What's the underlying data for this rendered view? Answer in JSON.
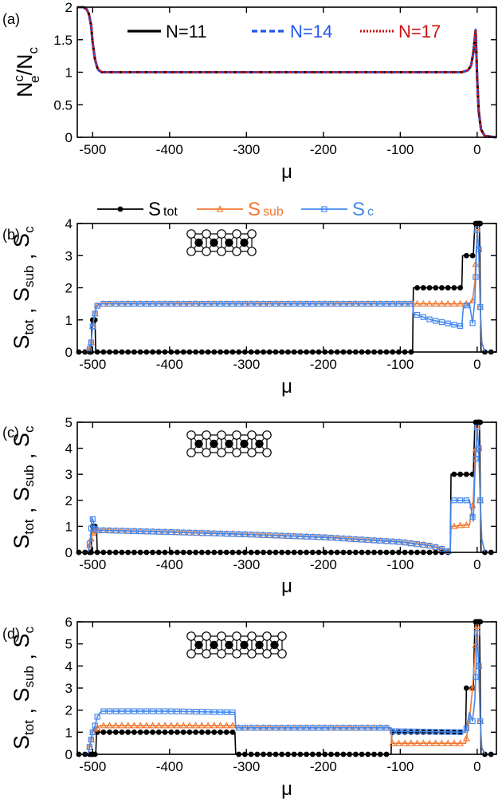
{
  "colors": {
    "black": "#000000",
    "blue": "#2255ee",
    "red": "#cc1111",
    "orange": "#f07830",
    "lightblue": "#4488ee"
  },
  "chart_data": [
    {
      "panel": "(a)",
      "type": "line",
      "ylabel": {
        "base": "N",
        "sup": "c",
        "sub": "e",
        "tail": "/N",
        "tail_sub": "c"
      },
      "xlabel": "μ",
      "xlim": [
        -520,
        25
      ],
      "ylim": [
        0,
        2
      ],
      "xticks": [
        -500,
        -400,
        -300,
        -200,
        -100,
        0
      ],
      "yticks": [
        0,
        0.5,
        1,
        1.5,
        2
      ],
      "ytick_labels": [
        "0",
        "0.5",
        "1",
        "1.5",
        "2"
      ],
      "legend": [
        "N=11",
        "N=14",
        "N=17"
      ],
      "series": [
        {
          "name": "N=11",
          "style": "solid",
          "color": "#000000",
          "x": [
            -520,
            -512,
            -508,
            -505,
            -502,
            -500,
            -497,
            -494,
            -492,
            -488,
            -450,
            -300,
            -100,
            -20,
            -12,
            -8,
            -5,
            -2,
            0,
            2,
            5,
            10,
            25
          ],
          "y": [
            2,
            2,
            1.97,
            1.9,
            1.72,
            1.45,
            1.2,
            1.07,
            1.03,
            1.0,
            1.0,
            1.0,
            1.0,
            1.0,
            1.03,
            1.1,
            1.3,
            1.65,
            0.9,
            0.4,
            0.12,
            0.02,
            0.0
          ]
        },
        {
          "name": "N=14",
          "style": "dashed",
          "color": "#2255ee",
          "x": [
            -520,
            -512,
            -508,
            -505,
            -502,
            -500,
            -497,
            -494,
            -492,
            -488,
            -450,
            -300,
            -100,
            -20,
            -12,
            -8,
            -5,
            -2,
            0,
            2,
            5,
            10,
            25
          ],
          "y": [
            2,
            2,
            1.97,
            1.9,
            1.72,
            1.45,
            1.2,
            1.07,
            1.03,
            1.0,
            1.0,
            1.0,
            1.0,
            1.0,
            1.03,
            1.1,
            1.3,
            1.65,
            0.9,
            0.4,
            0.12,
            0.02,
            0.0
          ]
        },
        {
          "name": "N=17",
          "style": "dotted",
          "color": "#cc1111",
          "x": [
            -520,
            -512,
            -508,
            -505,
            -502,
            -500,
            -497,
            -494,
            -492,
            -488,
            -450,
            -300,
            -100,
            -20,
            -12,
            -8,
            -5,
            -2,
            0,
            2,
            5,
            10,
            25
          ],
          "y": [
            2,
            2,
            1.97,
            1.9,
            1.72,
            1.45,
            1.2,
            1.07,
            1.03,
            1.0,
            1.0,
            1.0,
            1.0,
            1.0,
            1.03,
            1.1,
            1.3,
            1.65,
            0.9,
            0.4,
            0.12,
            0.02,
            0.0
          ]
        }
      ]
    },
    {
      "panel": "(b)",
      "type": "line",
      "xlabel": "μ",
      "xlim": [
        -520,
        25
      ],
      "ylim": [
        0,
        4
      ],
      "xticks": [
        -500,
        -400,
        -300,
        -200,
        -100,
        0
      ],
      "yticks": [
        0,
        1,
        2,
        3,
        4
      ],
      "ytick_labels": [
        "0",
        "1",
        "2",
        "3",
        "4"
      ],
      "ladder_rungs": 4,
      "series": [
        {
          "name": "S_tot",
          "color": "#000000",
          "marker": "circle",
          "step": true,
          "x": [
            -520,
            -502,
            -501,
            -497,
            -496,
            -84,
            -83,
            -20,
            -19,
            -5,
            -3,
            3,
            5,
            25
          ],
          "y": [
            0,
            0,
            1,
            1,
            0,
            0,
            2,
            2,
            3,
            3,
            4,
            4,
            0,
            0
          ]
        },
        {
          "name": "S_sub",
          "color": "#f07830",
          "marker": "triangle",
          "x": [
            -520,
            -505,
            -502,
            -500,
            -497,
            -495,
            -492,
            -488,
            -450,
            -300,
            -84,
            -83,
            -40,
            -20,
            -10,
            -6,
            -3,
            0,
            2,
            4,
            6,
            10,
            25
          ],
          "y": [
            0,
            0,
            0.3,
            0.8,
            1.2,
            1.42,
            1.48,
            1.5,
            1.5,
            1.5,
            1.5,
            1.5,
            1.5,
            1.5,
            1.5,
            1.6,
            2.2,
            3.8,
            3.2,
            1.4,
            0.3,
            0,
            0
          ]
        },
        {
          "name": "S_c",
          "color": "#4488ee",
          "marker": "square",
          "x": [
            -520,
            -505,
            -502,
            -500,
            -497,
            -495,
            -492,
            -488,
            -450,
            -300,
            -84,
            -83,
            -60,
            -40,
            -20,
            -18,
            -10,
            -6,
            -3,
            0,
            2,
            4,
            6,
            10,
            25
          ],
          "y": [
            0,
            0,
            0.3,
            0.8,
            1.2,
            1.42,
            1.48,
            1.5,
            1.5,
            1.5,
            1.5,
            1.2,
            1.0,
            0.9,
            0.8,
            1.4,
            1.5,
            0.9,
            1.6,
            3.8,
            3.2,
            1.4,
            0.3,
            0,
            0
          ]
        }
      ]
    },
    {
      "panel": "(c)",
      "type": "line",
      "xlabel": "μ",
      "xlim": [
        -520,
        25
      ],
      "ylim": [
        0,
        5
      ],
      "xticks": [
        -500,
        -400,
        -300,
        -200,
        -100,
        0
      ],
      "yticks": [
        0,
        1,
        2,
        3,
        4,
        5
      ],
      "ytick_labels": [
        "0",
        "1",
        "2",
        "3",
        "4",
        "5"
      ],
      "ladder_rungs": 5,
      "series": [
        {
          "name": "S_tot",
          "color": "#000000",
          "marker": "circle",
          "step": true,
          "x": [
            -520,
            -502,
            -501,
            -495,
            -494,
            -35,
            -34,
            -5,
            -3,
            3,
            5,
            25
          ],
          "y": [
            0,
            0,
            1,
            1,
            0,
            0,
            3,
            3,
            5,
            5,
            0,
            0
          ]
        },
        {
          "name": "S_sub",
          "color": "#f07830",
          "marker": "triangle",
          "x": [
            -520,
            -506,
            -503,
            -500,
            -497,
            -494,
            -490,
            -400,
            -300,
            -200,
            -100,
            -60,
            -42,
            -35,
            -34,
            -30,
            -20,
            -10,
            -5,
            -3,
            0,
            2,
            4,
            6,
            10,
            25
          ],
          "y": [
            0,
            0,
            0.4,
            0.75,
            0.82,
            0.85,
            0.85,
            0.78,
            0.69,
            0.58,
            0.4,
            0.25,
            0.1,
            0,
            1.0,
            1.0,
            1.05,
            1.05,
            2.0,
            3.5,
            4.8,
            4.0,
            2.0,
            0.5,
            0,
            0
          ]
        },
        {
          "name": "S_c",
          "color": "#4488ee",
          "marker": "square",
          "x": [
            -520,
            -506,
            -503,
            -501,
            -499,
            -497,
            -494,
            -490,
            -400,
            -300,
            -200,
            -100,
            -60,
            -42,
            -35,
            -34,
            -30,
            -20,
            -10,
            -5,
            -3,
            0,
            2,
            4,
            6,
            10,
            25
          ],
          "y": [
            0,
            0,
            0.5,
            1.35,
            1.2,
            0.9,
            0.85,
            0.85,
            0.78,
            0.69,
            0.58,
            0.4,
            0.25,
            0.1,
            0,
            2.0,
            2.0,
            2.0,
            2.0,
            1.2,
            3.0,
            4.8,
            4.0,
            2.0,
            0.5,
            0,
            0
          ]
        }
      ]
    },
    {
      "panel": "(d)",
      "type": "line",
      "xlabel": "μ",
      "xlim": [
        -520,
        25
      ],
      "ylim": [
        0,
        6
      ],
      "xticks": [
        -500,
        -400,
        -300,
        -200,
        -100,
        0
      ],
      "yticks": [
        0,
        1,
        2,
        3,
        4,
        5,
        6
      ],
      "ytick_labels": [
        "0",
        "1",
        "2",
        "3",
        "4",
        "5",
        "6"
      ],
      "ladder_rungs": 6,
      "series": [
        {
          "name": "S_tot",
          "color": "#000000",
          "marker": "circle",
          "step": true,
          "x": [
            -520,
            -496,
            -495,
            -488,
            -487,
            -315,
            -314,
            -112,
            -111,
            -15,
            -14,
            -5,
            -3,
            3,
            5,
            25
          ],
          "y": [
            0,
            0,
            1,
            1,
            1,
            1,
            0,
            0,
            1,
            1,
            3,
            3,
            6,
            6,
            0,
            0
          ]
        },
        {
          "name": "S_sub",
          "color": "#f07830",
          "marker": "triangle",
          "x": [
            -520,
            -506,
            -503,
            -500,
            -497,
            -494,
            -490,
            -488,
            -400,
            -315,
            -314,
            -200,
            -112,
            -111,
            -15,
            -10,
            -6,
            -3,
            0,
            2,
            4,
            6,
            10,
            25
          ],
          "y": [
            0,
            0,
            0.5,
            1.0,
            1.15,
            1.2,
            1.3,
            1.3,
            1.3,
            1.3,
            1.2,
            1.2,
            1.2,
            0.5,
            0.5,
            1.6,
            3.0,
            4.5,
            5.8,
            4.0,
            1.5,
            0.3,
            0,
            0
          ]
        },
        {
          "name": "S_c",
          "color": "#4488ee",
          "marker": "square",
          "x": [
            -520,
            -506,
            -503,
            -500,
            -497,
            -494,
            -490,
            -488,
            -400,
            -315,
            -314,
            -200,
            -112,
            -111,
            -15,
            -10,
            -6,
            -3,
            0,
            2,
            4,
            6,
            10,
            25
          ],
          "y": [
            0,
            0,
            0.5,
            1.0,
            1.3,
            1.7,
            1.9,
            1.95,
            1.95,
            1.9,
            1.2,
            1.2,
            1.2,
            1.05,
            1.0,
            1.9,
            1.5,
            2.5,
            5.5,
            4.0,
            1.5,
            0.3,
            0,
            0
          ]
        }
      ]
    }
  ],
  "shared_legend": {
    "entries": [
      {
        "base": "S",
        "sub": "tot",
        "color": "#000000",
        "marker": "circle"
      },
      {
        "base": "S",
        "sub": "sub",
        "color": "#f07830",
        "marker": "triangle"
      },
      {
        "base": "S",
        "sub": "c",
        "color": "#4488ee",
        "marker": "square"
      }
    ]
  },
  "entropy_ylabel": {
    "parts": [
      {
        "base": "S",
        "sub": "tot"
      },
      {
        "sep": " , "
      },
      {
        "base": "S",
        "sub": "sub"
      },
      {
        "sep": " , "
      },
      {
        "base": "S",
        "sub": "c"
      }
    ]
  }
}
